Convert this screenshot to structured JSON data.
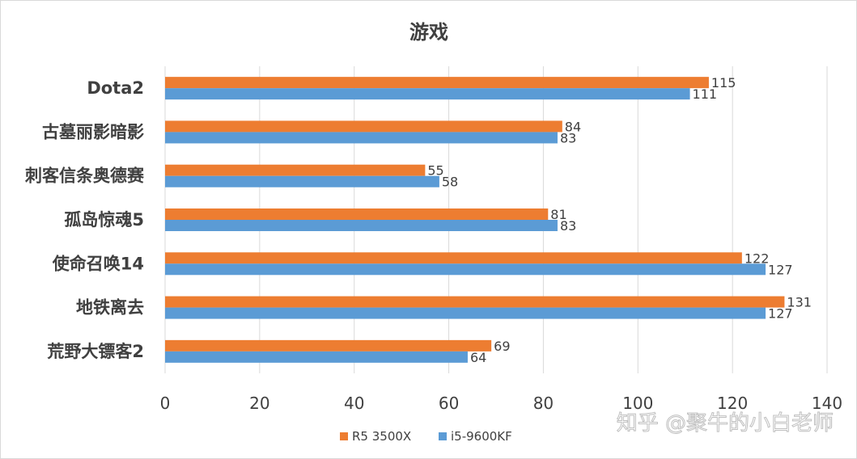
{
  "chart_data": {
    "type": "bar",
    "orientation": "horizontal",
    "title": "游戏",
    "categories": [
      "Dota2",
      "古墓丽影暗影",
      "刺客信条奥德赛",
      "孤岛惊魂5",
      "使命召唤14",
      "地铁离去",
      "荒野大镖客2"
    ],
    "series": [
      {
        "name": "R5 3500X",
        "color": "#ed7d31",
        "values": [
          115,
          84,
          55,
          81,
          122,
          131,
          69
        ]
      },
      {
        "name": "i5-9600KF",
        "color": "#5b9bd5",
        "values": [
          111,
          83,
          58,
          83,
          127,
          127,
          64
        ]
      }
    ],
    "xlim": [
      0,
      140
    ],
    "xticks": [
      "0",
      "20",
      "40",
      "60",
      "80",
      "100",
      "120",
      "140"
    ],
    "grid": true,
    "legend_position": "bottom"
  },
  "watermark": "知乎 @聚牛的小白老师"
}
